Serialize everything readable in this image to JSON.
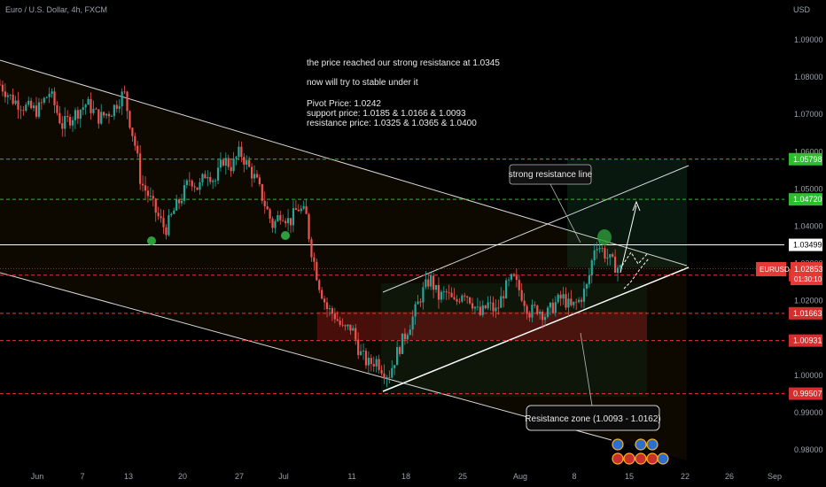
{
  "header": {
    "symbol_title": "Euro / U.S. Dollar, 4h, FXCM",
    "currency": "USD"
  },
  "annotations": {
    "line1": "the price reached our strong resistance at 1.0345",
    "line2": "now will try to stable under it",
    "line3": "Pivot Price: 1.0242",
    "line4": "support price: 1.0185 & 1.0166 & 1.0093",
    "line5": "resistance price: 1.0325 & 1.0365 & 1.0400",
    "callout_resistance_line": "strong resistance line",
    "callout_zone": "Resistance zone (1.0093  -  1.0162)"
  },
  "price_tag": {
    "symbol": "EURUSD",
    "price": "1.02853",
    "countdown": "01:30:10"
  },
  "colors": {
    "background": "#000000",
    "candle_up": "#26a69a",
    "candle_down": "#ef5350",
    "green_level": "#2ebd2e",
    "red_level": "#e53935",
    "white_level": "#ffffff"
  },
  "chart_data": {
    "type": "candlestick",
    "symbol": "EURUSD",
    "timeframe": "4h",
    "ylim": [
      0.976,
      1.1
    ],
    "y_ticks": [
      0.98,
      0.99,
      1.0,
      1.01,
      1.02,
      1.03,
      1.04,
      1.05,
      1.06,
      1.07,
      1.08,
      1.09
    ],
    "x_ticks": [
      "Jun",
      "7",
      "13",
      "20",
      "27",
      "Jul",
      "11",
      "18",
      "25",
      "Aug",
      "8",
      "15",
      "22",
      "26",
      "Sep"
    ],
    "price_path": [
      [
        0,
        1.078
      ],
      [
        3,
        1.074
      ],
      [
        6,
        1.072
      ],
      [
        9,
        1.071
      ],
      [
        12,
        1.076
      ],
      [
        15,
        1.067
      ],
      [
        18,
        1.07
      ],
      [
        21,
        1.073
      ],
      [
        24,
        1.069
      ],
      [
        27,
        1.071
      ],
      [
        30,
        1.076
      ],
      [
        31,
        1.07
      ],
      [
        33,
        1.06
      ],
      [
        34,
        1.052
      ],
      [
        36,
        1.048
      ],
      [
        38,
        1.043
      ],
      [
        40,
        1.039
      ],
      [
        42,
        1.044
      ],
      [
        44,
        1.048
      ],
      [
        46,
        1.053
      ],
      [
        48,
        1.05
      ],
      [
        50,
        1.055
      ],
      [
        52,
        1.052
      ],
      [
        54,
        1.058
      ],
      [
        56,
        1.056
      ],
      [
        58,
        1.06
      ],
      [
        60,
        1.056
      ],
      [
        62,
        1.052
      ],
      [
        64,
        1.046
      ],
      [
        66,
        1.04
      ],
      [
        68,
        1.044
      ],
      [
        70,
        1.041
      ],
      [
        72,
        1.045
      ],
      [
        74,
        1.043
      ],
      [
        75,
        1.035
      ],
      [
        77,
        1.025
      ],
      [
        79,
        1.018
      ],
      [
        81,
        1.016
      ],
      [
        83,
        1.012
      ],
      [
        85,
        1.013
      ],
      [
        87,
        1.006
      ],
      [
        89,
        1.003
      ],
      [
        91,
        1.004
      ],
      [
        93,
        1.001
      ],
      [
        94,
        1.0
      ],
      [
        96,
        1.006
      ],
      [
        98,
        1.011
      ],
      [
        100,
        1.016
      ],
      [
        102,
        1.022
      ],
      [
        104,
        1.026
      ],
      [
        106,
        1.021
      ],
      [
        108,
        1.022
      ],
      [
        110,
        1.019
      ],
      [
        112,
        1.023
      ],
      [
        114,
        1.02
      ],
      [
        116,
        1.016
      ],
      [
        118,
        1.019
      ],
      [
        120,
        1.017
      ],
      [
        122,
        1.023
      ],
      [
        124,
        1.026
      ],
      [
        126,
        1.022
      ],
      [
        128,
        1.017
      ],
      [
        130,
        1.018
      ],
      [
        132,
        1.016
      ],
      [
        134,
        1.019
      ],
      [
        136,
        1.021
      ],
      [
        138,
        1.018
      ],
      [
        140,
        1.02
      ],
      [
        142,
        1.024
      ],
      [
        144,
        1.036
      ],
      [
        146,
        1.033
      ],
      [
        148,
        1.03
      ],
      [
        150,
        1.0285
      ]
    ],
    "levels": [
      {
        "value": 1.05798,
        "label": "1.05798",
        "style": "dashed",
        "color": "green"
      },
      {
        "value": 1.0472,
        "label": "1.04720",
        "style": "dashed",
        "color": "green"
      },
      {
        "value": 1.03499,
        "label": "1.03499",
        "style": "solid",
        "color": "white"
      },
      {
        "value": 1.02686,
        "label": "1.02686",
        "style": "dashed",
        "color": "red"
      },
      {
        "value": 1.01663,
        "label": "1.01663",
        "style": "dashed",
        "color": "red"
      },
      {
        "value": 1.00931,
        "label": "1.00931",
        "style": "dashed",
        "color": "red"
      },
      {
        "value": 0.99507,
        "label": "0.99507",
        "style": "dashed",
        "color": "red"
      }
    ],
    "current_price": 1.02853,
    "resistance_zone": [
      1.0093,
      1.0162
    ],
    "pivot": 1.0242,
    "support": [
      1.0185,
      1.0166,
      1.0093
    ],
    "resistance": [
      1.0325,
      1.0365,
      1.04
    ]
  }
}
